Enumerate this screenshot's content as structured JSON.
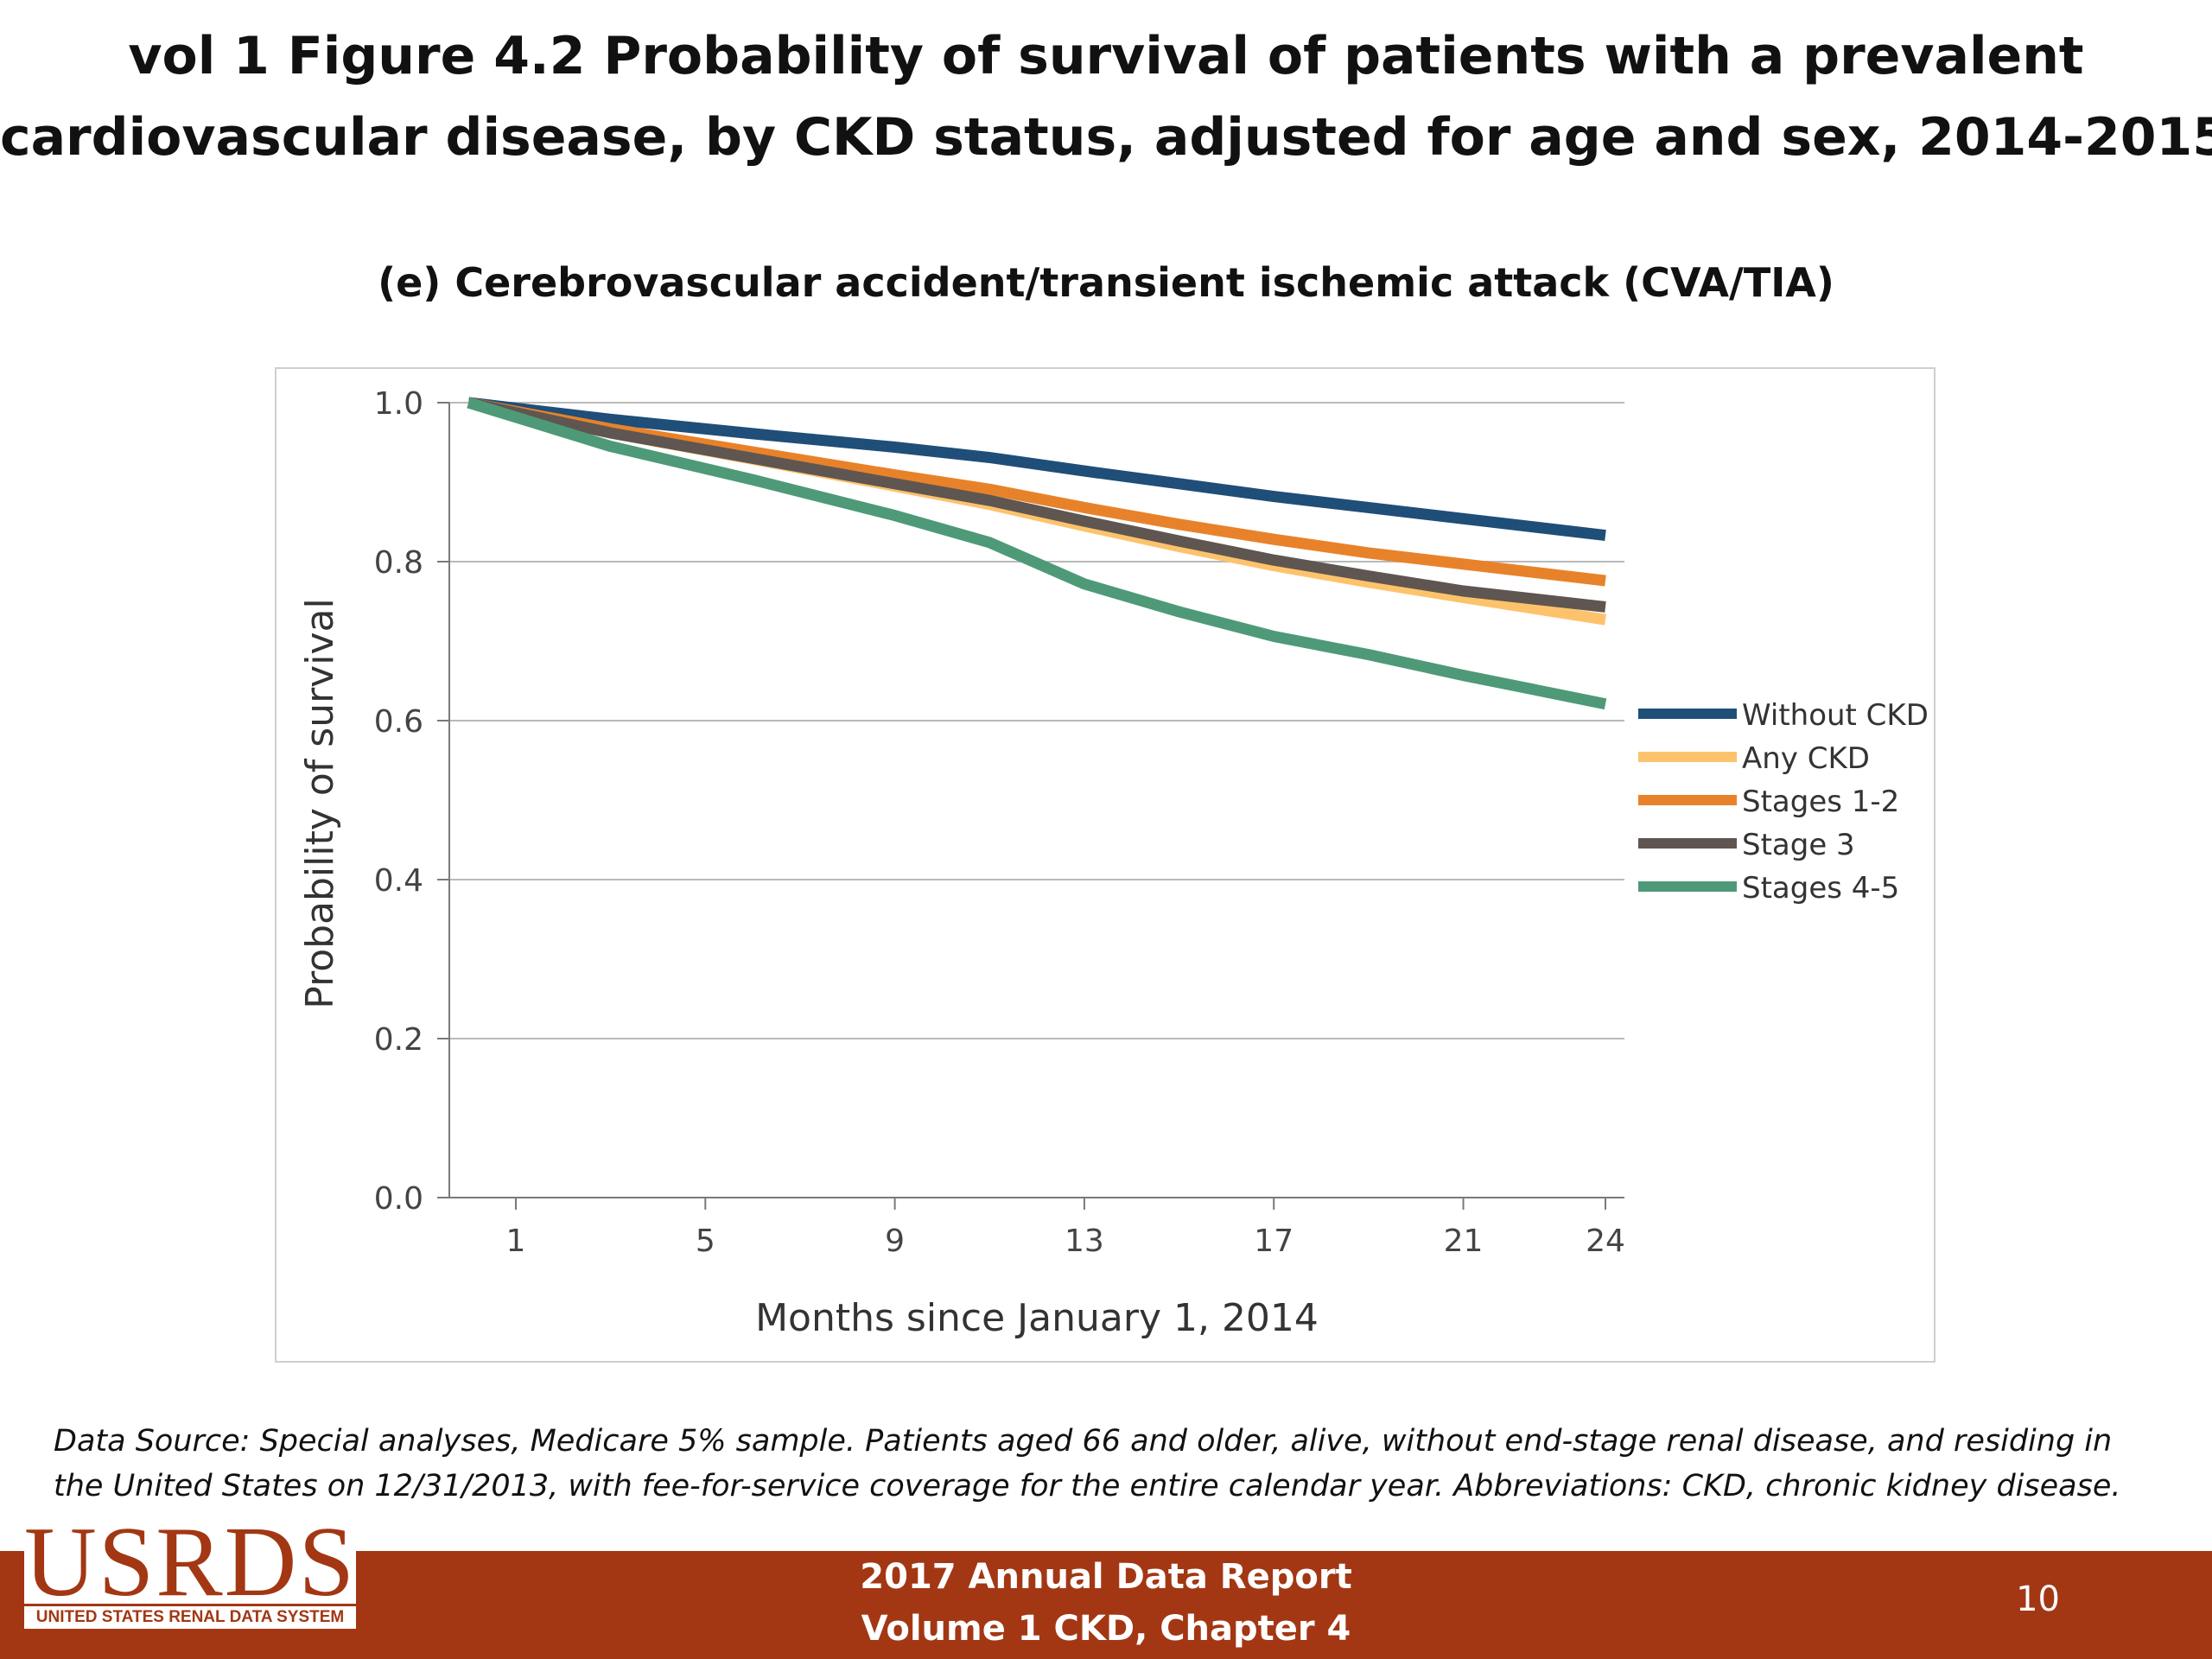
{
  "slide": {
    "title_line1": "vol 1 Figure 4.2 Probability of survival of patients with a prevalent",
    "title_line2": "cardiovascular disease, by CKD status, adjusted for age and sex, 2014-2015",
    "footnote": "Data Source: Special analyses, Medicare 5% sample. Patients aged 66 and older, alive, without end-stage renal disease, and residing in the United States on 12/31/2013, with fee-for-service coverage for the entire calendar year. Abbreviations: CKD, chronic kidney disease.",
    "footer_line1": "2017 Annual Data Report",
    "footer_line2": "Volume 1 CKD, Chapter 4",
    "page_number": "10",
    "logo_text": "USRDS",
    "logo_tagline": "UNITED STATES RENAL DATA SYSTEM",
    "colors": {
      "footer_bar": "#a33714",
      "logo": "#a33714"
    }
  },
  "chart_data": {
    "type": "line",
    "title": "(e) Cerebrovascular accident/transient ischemic attack (CVA/TIA)",
    "xlabel": "Months since January 1, 2014",
    "ylabel": "Probability of survival",
    "x_ticks": [
      1,
      5,
      9,
      13,
      17,
      21,
      24
    ],
    "y_ticks": [
      "0.0",
      "0.2",
      "0.4",
      "0.6",
      "0.8",
      "1.0"
    ],
    "ylim": [
      0,
      1
    ],
    "xlim": [
      -0.4,
      24.4
    ],
    "grid": "horizontal",
    "legend_position": "right",
    "series": [
      {
        "name": "Without CKD",
        "color": "#1f4e79",
        "points": [
          [
            0,
            1.0
          ],
          [
            3,
            0.979
          ],
          [
            6,
            0.961
          ],
          [
            9,
            0.944
          ],
          [
            11,
            0.931
          ],
          [
            13,
            0.914
          ],
          [
            15,
            0.898
          ],
          [
            17,
            0.882
          ],
          [
            19,
            0.868
          ],
          [
            21,
            0.854
          ],
          [
            24,
            0.833
          ]
        ]
      },
      {
        "name": "Any CKD",
        "color": "#fdc36c",
        "points": [
          [
            0,
            1.0
          ],
          [
            3,
            0.962
          ],
          [
            6,
            0.929
          ],
          [
            9,
            0.895
          ],
          [
            11,
            0.872
          ],
          [
            13,
            0.845
          ],
          [
            15,
            0.819
          ],
          [
            17,
            0.795
          ],
          [
            19,
            0.774
          ],
          [
            21,
            0.755
          ],
          [
            24,
            0.727
          ]
        ]
      },
      {
        "name": "Stages 1-2",
        "color": "#e8822a",
        "points": [
          [
            0,
            1.0
          ],
          [
            3,
            0.967
          ],
          [
            6,
            0.938
          ],
          [
            9,
            0.909
          ],
          [
            11,
            0.891
          ],
          [
            13,
            0.868
          ],
          [
            15,
            0.847
          ],
          [
            17,
            0.828
          ],
          [
            19,
            0.811
          ],
          [
            21,
            0.797
          ],
          [
            24,
            0.776
          ]
        ]
      },
      {
        "name": "Stage 3",
        "color": "#5f5651",
        "points": [
          [
            0,
            1.0
          ],
          [
            3,
            0.962
          ],
          [
            6,
            0.93
          ],
          [
            9,
            0.898
          ],
          [
            11,
            0.877
          ],
          [
            13,
            0.851
          ],
          [
            15,
            0.826
          ],
          [
            17,
            0.802
          ],
          [
            19,
            0.782
          ],
          [
            21,
            0.763
          ],
          [
            24,
            0.743
          ]
        ]
      },
      {
        "name": "Stages 4-5",
        "color": "#4e9a78",
        "points": [
          [
            0,
            1.0
          ],
          [
            3,
            0.945
          ],
          [
            6,
            0.903
          ],
          [
            9,
            0.858
          ],
          [
            11,
            0.824
          ],
          [
            13,
            0.772
          ],
          [
            15,
            0.737
          ],
          [
            17,
            0.706
          ],
          [
            19,
            0.683
          ],
          [
            21,
            0.657
          ],
          [
            24,
            0.621
          ]
        ]
      }
    ]
  }
}
